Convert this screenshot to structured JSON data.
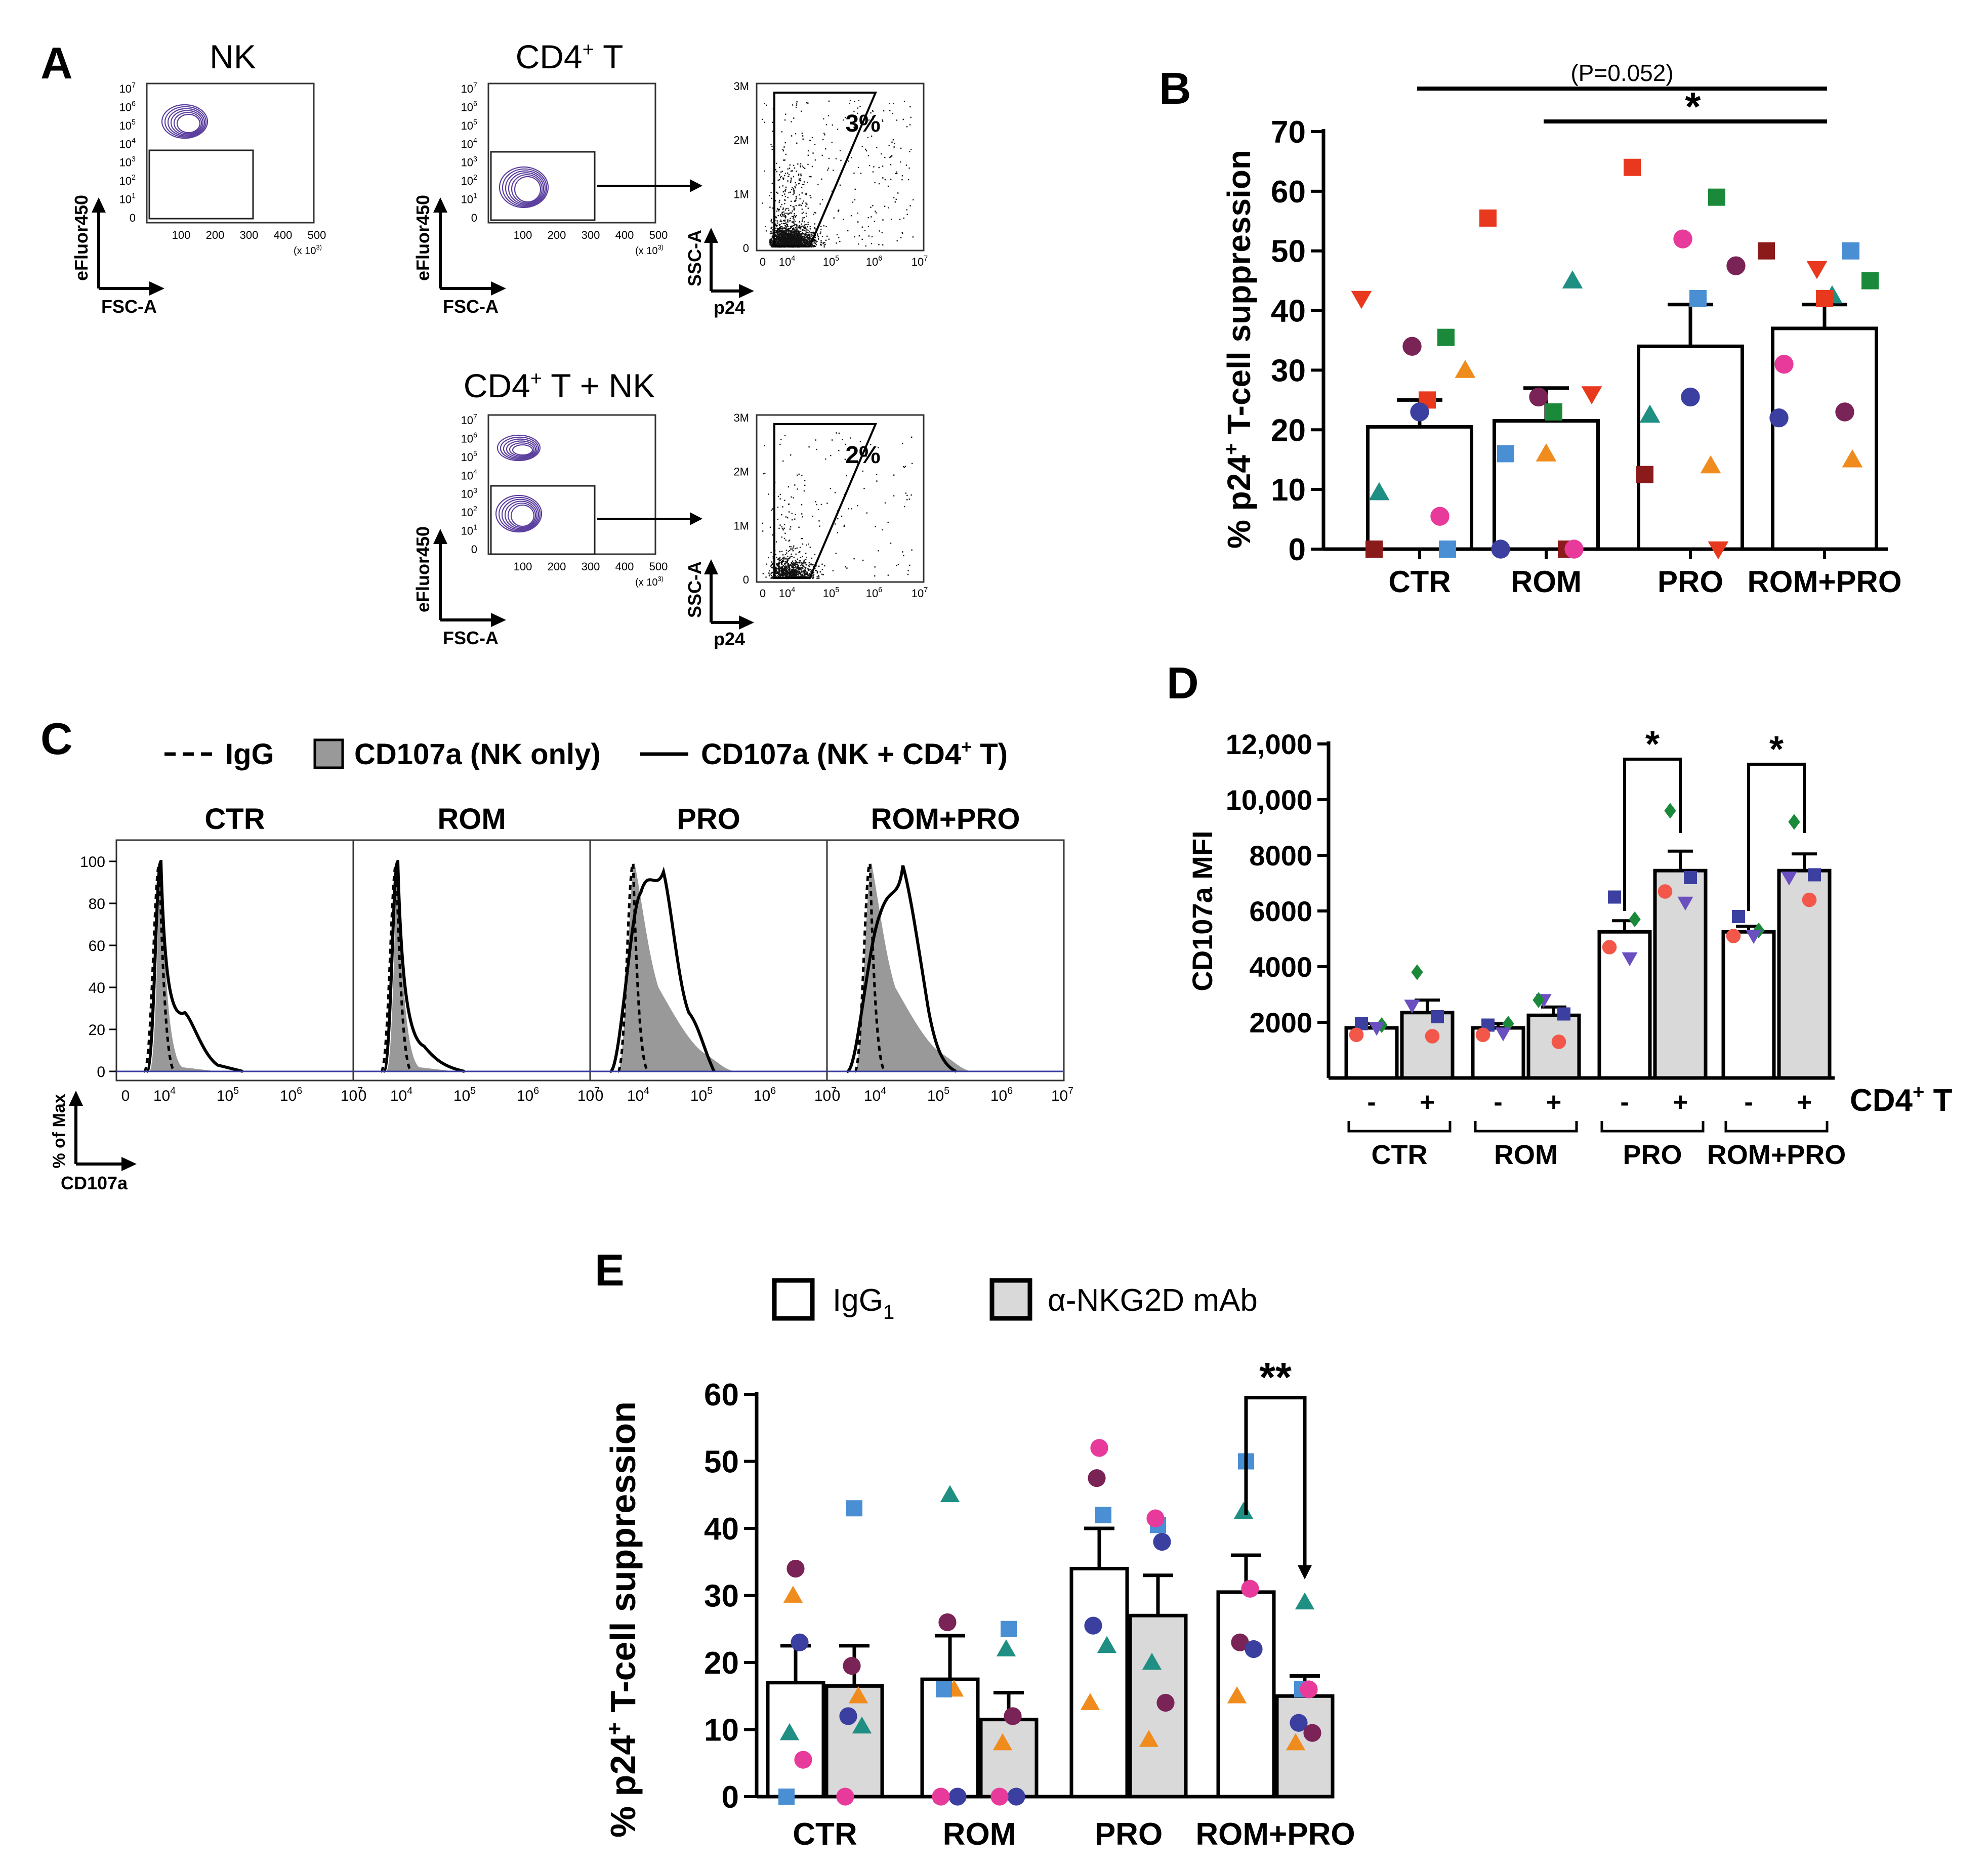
{
  "colors": {
    "axis": "#000000",
    "gray_fill": "#999999",
    "bar_gray": "#d9d9d9",
    "contour": "#5b3f9e",
    "dark_red": "#8b1a1a",
    "red": "#e8391e",
    "green": "#1a8a3a",
    "teal": "#1f8f84",
    "orange": "#f08c1e",
    "blue_sq": "#4a8fd4",
    "magenta": "#e83a9a",
    "purple": "#7a2356",
    "navy": "#3b3fa0",
    "violet": "#6a4fc0",
    "salmon": "#f2574a"
  },
  "panelA": {
    "letter": "A",
    "nk_title": "NK",
    "cd4_title_main": "CD4",
    "cd4_title_sup": "+",
    "cd4_title_tail": " T",
    "cd4nk_title_main": "CD4",
    "cd4nk_title_sup": "+",
    "cd4nk_title_tail": " T + NK",
    "y_label": "eFluor450",
    "x_label": "FSC-A",
    "p24_label": "p24",
    "ssc_label": "SSC-A",
    "y_ticks": [
      "10^7",
      "10^6",
      "10^5",
      "10^4",
      "10^3",
      "10^2",
      "10^1",
      "0"
    ],
    "x_ticks": [
      "100",
      "200",
      "300",
      "400",
      "500"
    ],
    "x_mult": "(x 10^3)",
    "scatter_y_ticks": [
      "3M",
      "2M",
      "1M",
      "0"
    ],
    "scatter_x_ticks": [
      "0",
      "10^4",
      "10^5",
      "10^6",
      "10^7"
    ],
    "gate_top": "3%",
    "gate_bottom": "2%"
  },
  "panelC": {
    "letter": "C",
    "legend_igg": "IgG",
    "legend_nk_only": "CD107a (NK only)",
    "legend_nk_cd4": "CD107a (NK + CD4",
    "legend_nk_cd4_sup": "+",
    "legend_nk_cd4_tail": " T)",
    "panels": [
      "CTR",
      "ROM",
      "PRO",
      "ROM+PRO"
    ],
    "y_ticks": [
      "100",
      "80",
      "60",
      "40",
      "20",
      "0"
    ],
    "x_ticks": [
      "0",
      "10^4",
      "10^5",
      "10^6",
      "10^7"
    ],
    "y_label": "% of Max",
    "x_label": "CD107a"
  },
  "chart_data": [
    {
      "panel": "B",
      "type": "bar",
      "categories": [
        "CTR",
        "ROM",
        "PRO",
        "ROM+PRO"
      ],
      "means": [
        20.5,
        21.5,
        34,
        37
      ],
      "sem": [
        4.5,
        5.5,
        7,
        4
      ],
      "ylabel": "% p24+ T-cell suppression",
      "ylim": [
        0,
        70
      ],
      "yticks": [
        0,
        10,
        20,
        30,
        40,
        50,
        60,
        70
      ],
      "points": [
        [
          {
            "v": 42,
            "shape": "tridown",
            "color": "red"
          },
          {
            "v": 35.5,
            "shape": "square",
            "color": "green"
          },
          {
            "v": 34,
            "shape": "circle",
            "color": "purple"
          },
          {
            "v": 30,
            "shape": "triangle",
            "color": "orange"
          },
          {
            "v": 25,
            "shape": "square",
            "color": "red"
          },
          {
            "v": 23,
            "shape": "circle",
            "color": "navy"
          },
          {
            "v": 9.5,
            "shape": "triangle",
            "color": "teal"
          },
          {
            "v": 5.5,
            "shape": "circle",
            "color": "magenta"
          },
          {
            "v": 0,
            "shape": "square",
            "color": "dark_red"
          },
          {
            "v": 0,
            "shape": "square",
            "color": "blue_sq"
          }
        ],
        [
          {
            "v": 55.5,
            "shape": "square",
            "color": "red"
          },
          {
            "v": 45,
            "shape": "triangle",
            "color": "teal"
          },
          {
            "v": 25.5,
            "shape": "circle",
            "color": "purple"
          },
          {
            "v": 26,
            "shape": "tridown",
            "color": "red"
          },
          {
            "v": 23,
            "shape": "square",
            "color": "green"
          },
          {
            "v": 16,
            "shape": "triangle",
            "color": "orange"
          },
          {
            "v": 16,
            "shape": "square",
            "color": "blue_sq"
          },
          {
            "v": 0,
            "shape": "square",
            "color": "dark_red"
          },
          {
            "v": 0,
            "shape": "circle",
            "color": "navy"
          },
          {
            "v": 0,
            "shape": "circle",
            "color": "magenta"
          }
        ],
        [
          {
            "v": 64,
            "shape": "square",
            "color": "red"
          },
          {
            "v": 59,
            "shape": "square",
            "color": "green"
          },
          {
            "v": 52,
            "shape": "circle",
            "color": "magenta"
          },
          {
            "v": 47.5,
            "shape": "circle",
            "color": "purple"
          },
          {
            "v": 42,
            "shape": "square",
            "color": "blue_sq"
          },
          {
            "v": 25.5,
            "shape": "circle",
            "color": "navy"
          },
          {
            "v": 22.5,
            "shape": "triangle",
            "color": "teal"
          },
          {
            "v": 14,
            "shape": "triangle",
            "color": "orange"
          },
          {
            "v": 12.5,
            "shape": "square",
            "color": "dark_red"
          },
          {
            "v": 0,
            "shape": "tridown",
            "color": "red"
          }
        ],
        [
          {
            "v": 50,
            "shape": "square",
            "color": "dark_red"
          },
          {
            "v": 50,
            "shape": "square",
            "color": "blue_sq"
          },
          {
            "v": 47,
            "shape": "tridown",
            "color": "red"
          },
          {
            "v": 45,
            "shape": "square",
            "color": "green"
          },
          {
            "v": 42.5,
            "shape": "triangle",
            "color": "teal"
          },
          {
            "v": 42,
            "shape": "square",
            "color": "red"
          },
          {
            "v": 31,
            "shape": "circle",
            "color": "magenta"
          },
          {
            "v": 23,
            "shape": "circle",
            "color": "purple"
          },
          {
            "v": 22,
            "shape": "circle",
            "color": "navy"
          },
          {
            "v": 15,
            "shape": "triangle",
            "color": "orange"
          }
        ]
      ],
      "annotations": [
        {
          "from": 0,
          "to": 3,
          "text": "(P=0.052)"
        },
        {
          "from": 1,
          "to": 3,
          "text": "*"
        }
      ]
    },
    {
      "panel": "D",
      "type": "bar",
      "groups": [
        "CTR",
        "ROM",
        "PRO",
        "ROM+PRO"
      ],
      "conditions": [
        "-",
        "+"
      ],
      "condition_label": "CD4+ T",
      "means": [
        [
          1800,
          2350
        ],
        [
          1800,
          2250
        ],
        [
          5250,
          7450
        ],
        [
          5250,
          7450
        ]
      ],
      "sem": [
        [
          150,
          450
        ],
        [
          150,
          300
        ],
        [
          400,
          700
        ],
        [
          200,
          600
        ]
      ],
      "ylabel": "CD107a MFI",
      "ylim": [
        0,
        12000
      ],
      "ytick_labels": [
        "2000",
        "4000",
        "6000",
        "8000",
        "10,000",
        "12,000"
      ],
      "yticks": [
        2000,
        4000,
        6000,
        8000,
        10000,
        12000
      ],
      "points": [
        [
          [
            {
              "v": 1950,
              "shape": "square",
              "color": "navy"
            },
            {
              "v": 1900,
              "shape": "diamond",
              "color": "green"
            },
            {
              "v": 1550,
              "shape": "circle",
              "color": "salmon"
            },
            {
              "v": 1800,
              "shape": "tridown",
              "color": "violet"
            }
          ],
          [
            {
              "v": 3800,
              "shape": "diamond",
              "color": "green"
            },
            {
              "v": 2200,
              "shape": "square",
              "color": "navy"
            },
            {
              "v": 2600,
              "shape": "tridown",
              "color": "violet"
            },
            {
              "v": 1500,
              "shape": "circle",
              "color": "salmon"
            }
          ]
        ],
        [
          [
            {
              "v": 1900,
              "shape": "square",
              "color": "navy"
            },
            {
              "v": 1950,
              "shape": "diamond",
              "color": "green"
            },
            {
              "v": 1550,
              "shape": "circle",
              "color": "salmon"
            },
            {
              "v": 1600,
              "shape": "tridown",
              "color": "violet"
            }
          ],
          [
            {
              "v": 2800,
              "shape": "tridown",
              "color": "violet"
            },
            {
              "v": 2300,
              "shape": "square",
              "color": "navy"
            },
            {
              "v": 2800,
              "shape": "diamond",
              "color": "green"
            },
            {
              "v": 1300,
              "shape": "circle",
              "color": "salmon"
            }
          ]
        ],
        [
          [
            {
              "v": 6500,
              "shape": "square",
              "color": "navy"
            },
            {
              "v": 5700,
              "shape": "diamond",
              "color": "green"
            },
            {
              "v": 4700,
              "shape": "circle",
              "color": "salmon"
            },
            {
              "v": 4300,
              "shape": "tridown",
              "color": "violet"
            }
          ],
          [
            {
              "v": 9600,
              "shape": "diamond",
              "color": "green"
            },
            {
              "v": 7200,
              "shape": "square",
              "color": "navy"
            },
            {
              "v": 6700,
              "shape": "circle",
              "color": "salmon"
            },
            {
              "v": 6300,
              "shape": "tridown",
              "color": "violet"
            }
          ]
        ],
        [
          [
            {
              "v": 5800,
              "shape": "square",
              "color": "navy"
            },
            {
              "v": 5300,
              "shape": "diamond",
              "color": "green"
            },
            {
              "v": 5100,
              "shape": "circle",
              "color": "salmon"
            },
            {
              "v": 5100,
              "shape": "tridown",
              "color": "violet"
            }
          ],
          [
            {
              "v": 9200,
              "shape": "diamond",
              "color": "green"
            },
            {
              "v": 7300,
              "shape": "square",
              "color": "navy"
            },
            {
              "v": 7200,
              "shape": "tridown",
              "color": "violet"
            },
            {
              "v": 6400,
              "shape": "circle",
              "color": "salmon"
            }
          ]
        ]
      ],
      "annotations": [
        {
          "group": 2,
          "text": "*"
        },
        {
          "group": 3,
          "text": "*"
        }
      ]
    },
    {
      "panel": "E",
      "type": "bar",
      "groups": [
        "CTR",
        "ROM",
        "PRO",
        "ROM+PRO"
      ],
      "series": [
        {
          "name": "IgG1",
          "means": [
            17,
            17.5,
            34,
            30.5
          ],
          "sem": [
            5.5,
            6.5,
            6,
            5.5
          ]
        },
        {
          "name": "α-NKG2D mAb",
          "means": [
            16.5,
            11.5,
            27,
            15
          ],
          "sem": [
            6,
            4,
            6,
            3
          ]
        }
      ],
      "ylabel": "% p24+ T-cell suppression",
      "ylim": [
        0,
        60
      ],
      "yticks": [
        0,
        10,
        20,
        30,
        40,
        50,
        60
      ],
      "points": [
        [
          [
            {
              "v": 34,
              "shape": "circle",
              "color": "purple"
            },
            {
              "v": 30,
              "shape": "triangle",
              "color": "orange"
            },
            {
              "v": 23,
              "shape": "circle",
              "color": "navy"
            },
            {
              "v": 9.5,
              "shape": "triangle",
              "color": "teal"
            },
            {
              "v": 5.5,
              "shape": "circle",
              "color": "magenta"
            },
            {
              "v": 0,
              "shape": "square",
              "color": "blue_sq"
            }
          ],
          [
            {
              "v": 43,
              "shape": "square",
              "color": "blue_sq"
            },
            {
              "v": 19.5,
              "shape": "circle",
              "color": "purple"
            },
            {
              "v": 15,
              "shape": "triangle",
              "color": "orange"
            },
            {
              "v": 12,
              "shape": "circle",
              "color": "navy"
            },
            {
              "v": 10.5,
              "shape": "triangle",
              "color": "teal"
            },
            {
              "v": 0,
              "shape": "circle",
              "color": "magenta"
            }
          ]
        ],
        [
          [
            {
              "v": 45,
              "shape": "triangle",
              "color": "teal"
            },
            {
              "v": 26,
              "shape": "circle",
              "color": "purple"
            },
            {
              "v": 16,
              "shape": "triangle",
              "color": "orange"
            },
            {
              "v": 16,
              "shape": "square",
              "color": "blue_sq"
            },
            {
              "v": 0,
              "shape": "circle",
              "color": "navy"
            },
            {
              "v": 0,
              "shape": "circle",
              "color": "magenta"
            }
          ],
          [
            {
              "v": 25,
              "shape": "square",
              "color": "blue_sq"
            },
            {
              "v": 22,
              "shape": "triangle",
              "color": "teal"
            },
            {
              "v": 12,
              "shape": "circle",
              "color": "purple"
            },
            {
              "v": 8,
              "shape": "triangle",
              "color": "orange"
            },
            {
              "v": 0,
              "shape": "circle",
              "color": "navy"
            },
            {
              "v": 0,
              "shape": "circle",
              "color": "magenta"
            }
          ]
        ],
        [
          [
            {
              "v": 52,
              "shape": "circle",
              "color": "magenta"
            },
            {
              "v": 47.5,
              "shape": "circle",
              "color": "purple"
            },
            {
              "v": 42,
              "shape": "square",
              "color": "blue_sq"
            },
            {
              "v": 25.5,
              "shape": "circle",
              "color": "navy"
            },
            {
              "v": 22.5,
              "shape": "triangle",
              "color": "teal"
            },
            {
              "v": 14,
              "shape": "triangle",
              "color": "orange"
            }
          ],
          [
            {
              "v": 40.5,
              "shape": "square",
              "color": "blue_sq"
            },
            {
              "v": 41.5,
              "shape": "circle",
              "color": "magenta"
            },
            {
              "v": 38,
              "shape": "circle",
              "color": "navy"
            },
            {
              "v": 20,
              "shape": "triangle",
              "color": "teal"
            },
            {
              "v": 14,
              "shape": "circle",
              "color": "purple"
            },
            {
              "v": 8.5,
              "shape": "triangle",
              "color": "orange"
            }
          ]
        ],
        [
          [
            {
              "v": 50,
              "shape": "square",
              "color": "blue_sq"
            },
            {
              "v": 42.5,
              "shape": "triangle",
              "color": "teal"
            },
            {
              "v": 31,
              "shape": "circle",
              "color": "magenta"
            },
            {
              "v": 23,
              "shape": "circle",
              "color": "purple"
            },
            {
              "v": 22,
              "shape": "circle",
              "color": "navy"
            },
            {
              "v": 15,
              "shape": "triangle",
              "color": "orange"
            }
          ],
          [
            {
              "v": 29,
              "shape": "triangle",
              "color": "teal"
            },
            {
              "v": 16,
              "shape": "square",
              "color": "blue_sq"
            },
            {
              "v": 16,
              "shape": "circle",
              "color": "magenta"
            },
            {
              "v": 11,
              "shape": "circle",
              "color": "navy"
            },
            {
              "v": 9.5,
              "shape": "circle",
              "color": "purple"
            },
            {
              "v": 8,
              "shape": "triangle",
              "color": "orange"
            }
          ]
        ]
      ],
      "annotations": [
        {
          "group": 3,
          "text": "**"
        }
      ]
    }
  ],
  "panelB": {
    "letter": "B",
    "ylabel_main": "% p24",
    "ylabel_sup": "+",
    "ylabel_tail": " T-cell suppression"
  },
  "panelD": {
    "letter": "D",
    "cond_main": "CD4",
    "cond_sup": "+",
    "cond_tail": " T"
  },
  "panelE": {
    "letter": "E",
    "legend_igg_main": "IgG",
    "legend_igg_sub": "1",
    "legend_ab": "α-NKG2D mAb",
    "ylabel_main": "% p24",
    "ylabel_sup": "+",
    "ylabel_tail": " T-cell suppression"
  }
}
